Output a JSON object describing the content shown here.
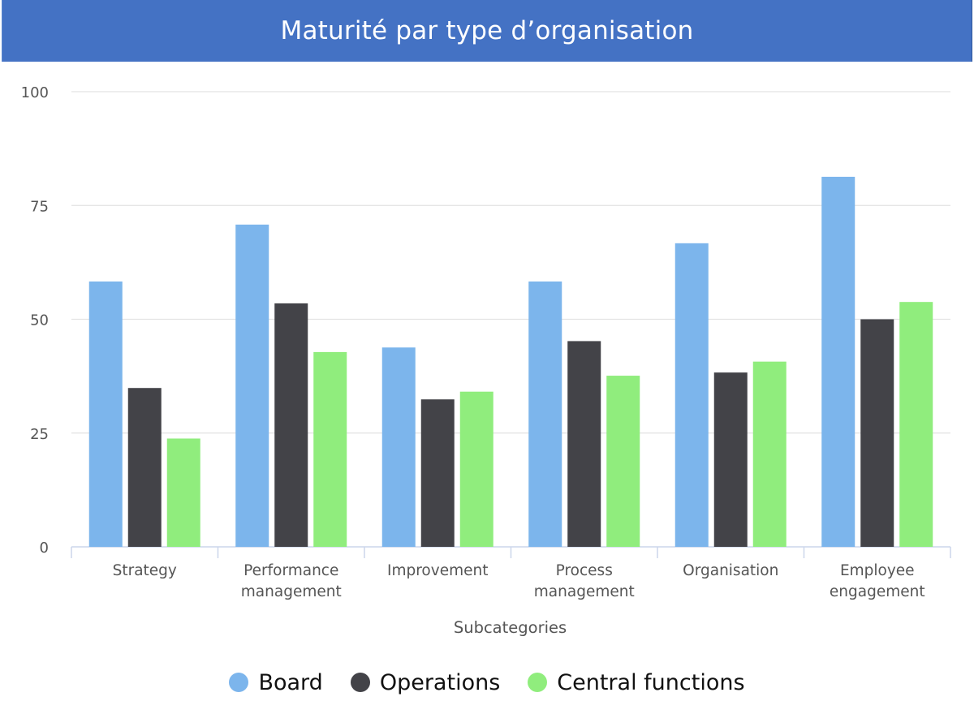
{
  "title": "Maturité par type d’organisation",
  "colors": {
    "title_bg": "#4472c4",
    "grid": "#e3e3e3",
    "axis": "#ccd6eb",
    "text": "#555555"
  },
  "legend": [
    {
      "label": "Board",
      "color": "#7cb5ec"
    },
    {
      "label": "Operations",
      "color": "#434348"
    },
    {
      "label": "Central functions",
      "color": "#90ed7d"
    }
  ],
  "chart_data": {
    "type": "bar",
    "title": "Maturité par type d’organisation",
    "xlabel": "Subcategories",
    "ylabel": "",
    "ylim": [
      0,
      100
    ],
    "yticks": [
      0,
      25,
      50,
      75,
      100
    ],
    "grid": true,
    "legend_position": "bottom",
    "categories": [
      [
        "Strategy"
      ],
      [
        "Performance",
        "management"
      ],
      [
        "Improvement"
      ],
      [
        "Process",
        "management"
      ],
      [
        "Organisation"
      ],
      [
        "Employee",
        "engagement"
      ]
    ],
    "series": [
      {
        "name": "Board",
        "color": "#7cb5ec",
        "values": [
          58.3,
          70.8,
          43.8,
          58.3,
          66.7,
          81.3
        ]
      },
      {
        "name": "Operations",
        "color": "#434348",
        "values": [
          34.9,
          53.5,
          32.4,
          45.2,
          38.3,
          50.0
        ]
      },
      {
        "name": "Central functions",
        "color": "#90ed7d",
        "values": [
          23.8,
          42.8,
          34.1,
          37.6,
          40.7,
          53.8
        ]
      }
    ]
  }
}
